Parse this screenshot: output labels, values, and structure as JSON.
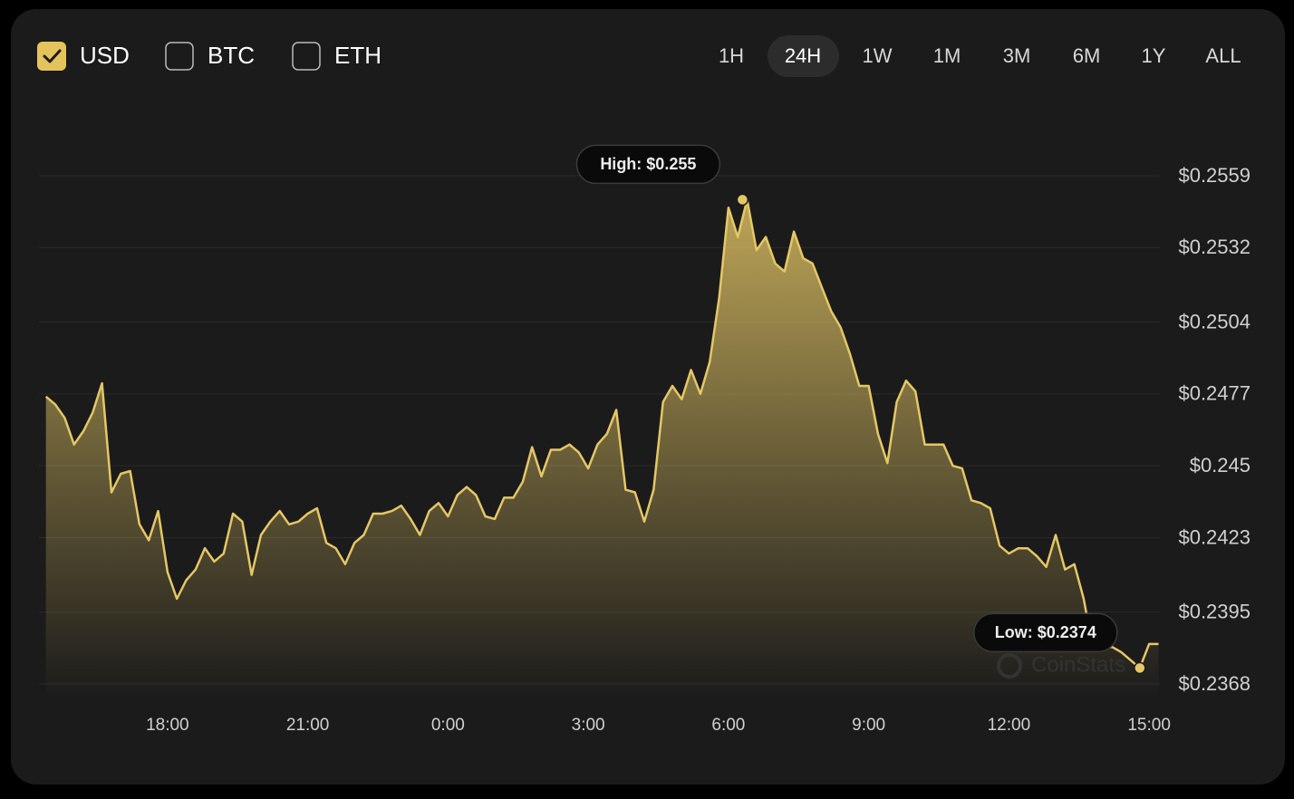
{
  "controls": {
    "currencies": [
      {
        "label": "USD",
        "checked": true
      },
      {
        "label": "BTC",
        "checked": false
      },
      {
        "label": "ETH",
        "checked": false
      }
    ],
    "ranges": [
      {
        "label": "1H",
        "active": false
      },
      {
        "label": "24H",
        "active": true
      },
      {
        "label": "1W",
        "active": false
      },
      {
        "label": "1M",
        "active": false
      },
      {
        "label": "3M",
        "active": false
      },
      {
        "label": "6M",
        "active": false
      },
      {
        "label": "1Y",
        "active": false
      },
      {
        "label": "ALL",
        "active": false
      }
    ]
  },
  "watermark": "CoinStats",
  "chart_data": {
    "type": "line",
    "color": "#e5c766",
    "grid": true,
    "x": [
      15.4,
      15.6,
      15.8,
      16,
      16.2,
      16.4,
      16.6,
      16.8,
      17,
      17.2,
      17.4,
      17.6,
      17.8,
      18,
      18.2,
      18.4,
      18.6,
      18.8,
      19,
      19.2,
      19.4,
      19.6,
      19.8,
      20,
      20.2,
      20.4,
      20.6,
      20.8,
      21,
      21.2,
      21.4,
      21.6,
      21.8,
      22,
      22.2,
      22.4,
      22.6,
      22.8,
      23,
      23.2,
      23.4,
      23.6,
      23.8,
      24,
      24.2,
      24.4,
      24.6,
      24.8,
      25,
      25.2,
      25.4,
      25.6,
      25.8,
      26,
      26.2,
      26.4,
      26.6,
      26.8,
      27,
      27.2,
      27.4,
      27.6,
      27.8,
      28,
      28.2,
      28.4,
      28.6,
      28.8,
      29,
      29.2,
      29.4,
      29.6,
      29.8,
      30,
      30.2,
      30.4,
      30.6,
      30.8,
      31,
      31.2,
      31.4,
      31.6,
      31.8,
      32,
      32.2,
      32.4,
      32.6,
      32.8,
      33,
      33.2,
      33.4,
      33.6,
      33.8,
      34,
      34.2,
      34.4,
      34.6,
      34.8,
      35,
      35.2,
      35.4,
      35.6,
      35.8,
      36,
      36.2,
      36.4,
      36.6,
      36.8,
      37,
      37.2,
      37.4,
      37.6,
      37.8,
      38,
      38.2,
      38.4,
      38.6,
      38.8,
      39,
      39.2
    ],
    "values": [
      0.2476,
      0.2473,
      0.2468,
      0.2458,
      0.2463,
      0.247,
      0.2481,
      0.244,
      0.2447,
      0.2448,
      0.2428,
      0.2422,
      0.2433,
      0.241,
      0.24,
      0.2407,
      0.2411,
      0.2419,
      0.2414,
      0.2417,
      0.2432,
      0.2429,
      0.2409,
      0.2424,
      0.2429,
      0.2433,
      0.2428,
      0.2429,
      0.2432,
      0.2434,
      0.2421,
      0.2419,
      0.2413,
      0.2421,
      0.2424,
      0.2432,
      0.2432,
      0.2433,
      0.2435,
      0.243,
      0.2424,
      0.2433,
      0.2436,
      0.2431,
      0.2439,
      0.2442,
      0.2439,
      0.2431,
      0.243,
      0.2438,
      0.2438,
      0.2444,
      0.2457,
      0.2446,
      0.2456,
      0.2456,
      0.2458,
      0.2455,
      0.2449,
      0.2458,
      0.2462,
      0.2471,
      0.2441,
      0.244,
      0.2429,
      0.2441,
      0.2474,
      0.248,
      0.2475,
      0.2486,
      0.2477,
      0.2489,
      0.2513,
      0.2547,
      0.2536,
      0.255,
      0.2531,
      0.2536,
      0.2526,
      0.2523,
      0.2538,
      0.2528,
      0.2526,
      0.2517,
      0.2508,
      0.2502,
      0.2492,
      0.248,
      0.248,
      0.2462,
      0.2451,
      0.2474,
      0.2482,
      0.2478,
      0.2458,
      0.2458,
      0.2458,
      0.245,
      0.2449,
      0.2437,
      0.2436,
      0.2434,
      0.242,
      0.2417,
      0.2419,
      0.2419,
      0.2416,
      0.2412,
      0.2424,
      0.2411,
      0.2413,
      0.24,
      0.2381,
      0.2381,
      0.2382,
      0.238,
      0.2377,
      0.2374,
      0.2383,
      0.2383
    ],
    "xlim": [
      15.25,
      39.23
    ],
    "ylim": [
      0.2368,
      0.2559
    ],
    "xticks": [
      {
        "value": 18,
        "label": "18:00"
      },
      {
        "value": 21,
        "label": "21:00"
      },
      {
        "value": 24,
        "label": "0:00"
      },
      {
        "value": 27,
        "label": "3:00"
      },
      {
        "value": 30,
        "label": "6:00"
      },
      {
        "value": 33,
        "label": "9:00"
      },
      {
        "value": 36,
        "label": "12:00"
      },
      {
        "value": 39,
        "label": "15:00"
      }
    ],
    "yticks": [
      {
        "value": 0.2559,
        "label": "$0.2559"
      },
      {
        "value": 0.2532,
        "label": "$0.2532"
      },
      {
        "value": 0.2504,
        "label": "$0.2504"
      },
      {
        "value": 0.2477,
        "label": "$0.2477"
      },
      {
        "value": 0.245,
        "label": "$0.245"
      },
      {
        "value": 0.2423,
        "label": "$0.2423"
      },
      {
        "value": 0.2395,
        "label": "$0.2395"
      },
      {
        "value": 0.2368,
        "label": "$0.2368"
      }
    ],
    "annotations": [
      {
        "text": "High: $0.255",
        "x": 30.3,
        "y": 0.255
      },
      {
        "text": "Low: $0.2374",
        "x": 38.8,
        "y": 0.2374
      }
    ]
  }
}
